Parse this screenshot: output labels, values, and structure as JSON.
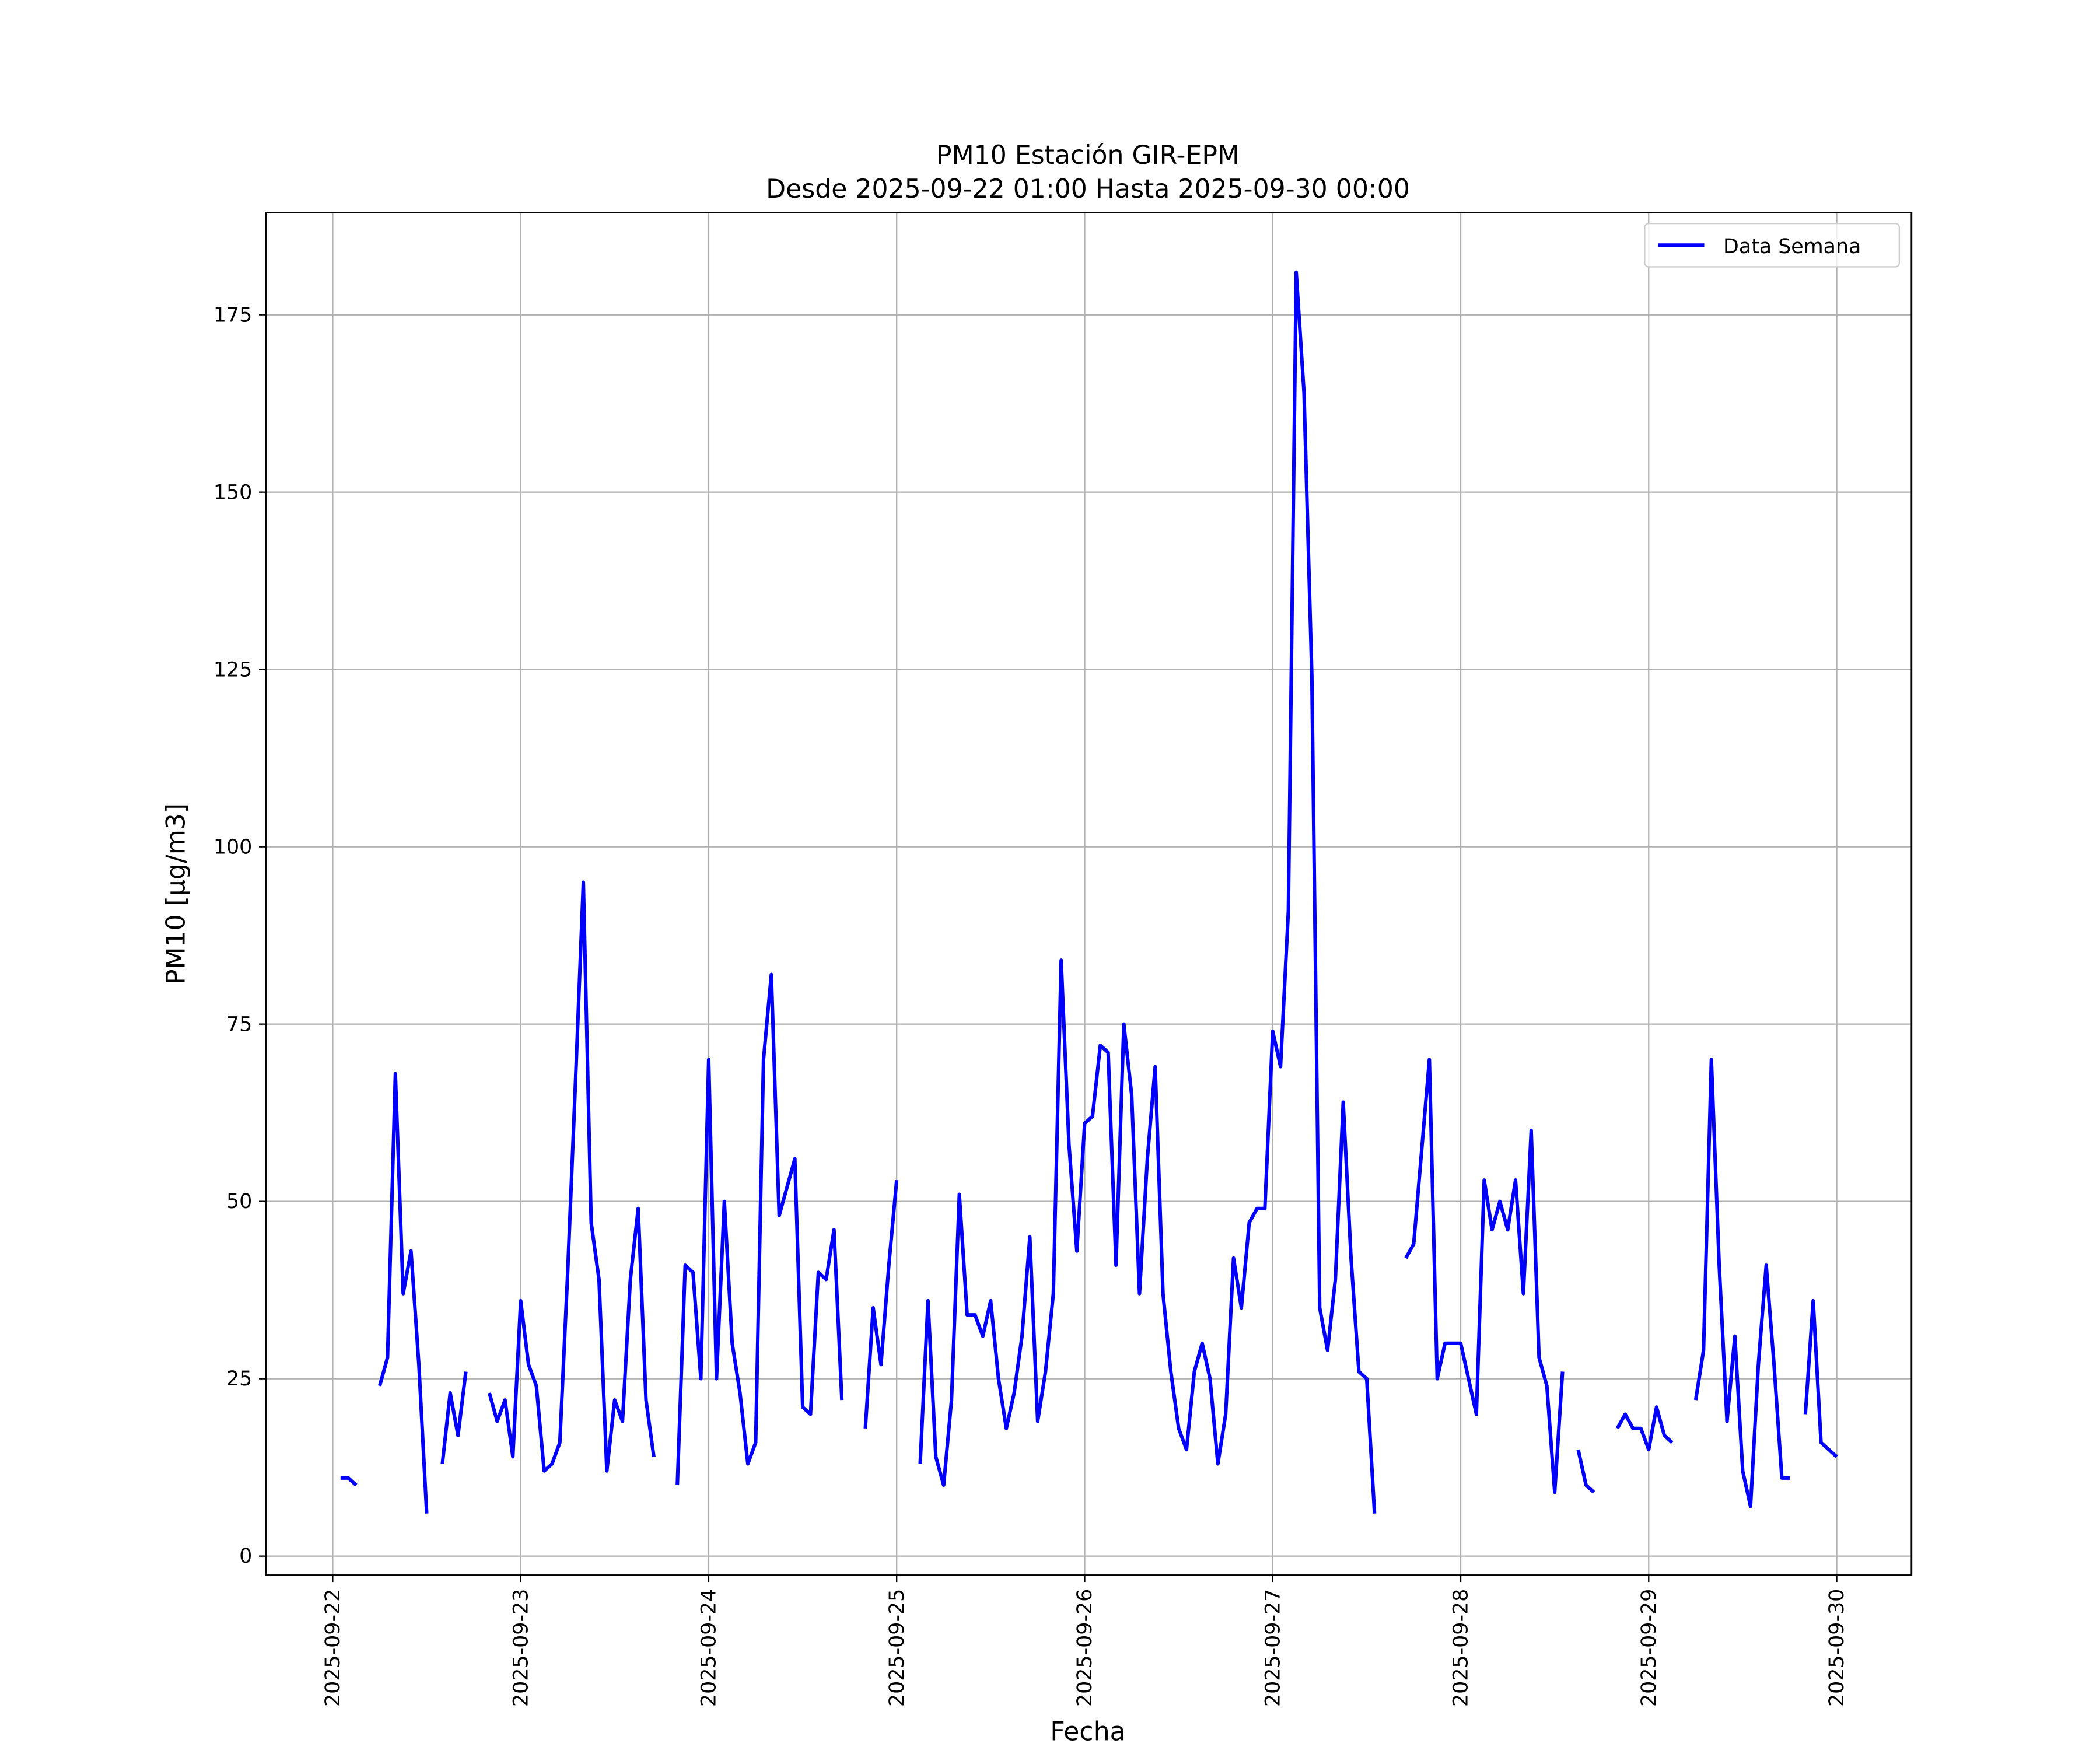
{
  "chart_data": {
    "type": "line",
    "title": "PM10 Estación GIR-EPM",
    "subtitle": "Desde 2025-09-22 01:00 Hasta 2025-09-30 00:00",
    "xlabel": "Fecha",
    "ylabel": "PM10 [μg/m3]",
    "ylim": [
      -2.7,
      189.4
    ],
    "yticks": [
      0,
      25,
      50,
      75,
      100,
      125,
      150,
      175
    ],
    "xticks": [
      "2025-09-22",
      "2025-09-23",
      "2025-09-24",
      "2025-09-25",
      "2025-09-26",
      "2025-09-27",
      "2025-09-28",
      "2025-09-29",
      "2025-09-30"
    ],
    "x_start": "2025-09-22 01:00",
    "x_step_hours": 1,
    "grid": true,
    "legend": {
      "position": "top-right",
      "entries": [
        "Data Semana"
      ]
    },
    "series": [
      {
        "name": "Data Semana",
        "color": "#0000ff",
        "values": [
          11,
          11,
          10,
          null,
          null,
          24,
          28,
          68,
          37,
          43,
          27,
          6,
          null,
          13,
          23,
          17,
          26,
          null,
          null,
          23,
          19,
          22,
          14,
          36,
          27,
          24,
          12,
          13,
          16,
          40,
          67,
          95,
          47,
          39,
          12,
          22,
          19,
          39,
          49,
          22,
          14,
          null,
          null,
          10,
          41,
          40,
          25,
          70,
          25,
          50,
          30,
          23,
          13,
          16,
          70,
          82,
          48,
          52,
          56,
          21,
          20,
          40,
          39,
          46,
          22,
          null,
          null,
          18,
          35,
          27,
          41,
          53,
          null,
          null,
          13,
          36,
          14,
          10,
          22,
          51,
          34,
          34,
          31,
          36,
          25,
          18,
          23,
          31,
          45,
          19,
          26,
          37,
          84,
          58,
          43,
          61,
          62,
          72,
          71,
          41,
          75,
          65,
          37,
          56,
          69,
          37,
          26,
          18,
          15,
          26,
          30,
          25,
          13,
          20,
          42,
          35,
          47,
          49,
          49,
          74,
          69,
          91,
          181,
          164,
          124,
          35,
          29,
          39,
          64,
          42,
          26,
          25,
          6,
          null,
          null,
          null,
          42,
          44,
          57,
          70,
          25,
          30,
          30,
          30,
          25,
          20,
          53,
          46,
          50,
          46,
          53,
          37,
          60,
          28,
          24,
          9,
          26,
          null,
          15,
          10,
          9,
          null,
          null,
          18,
          20,
          18,
          18,
          15,
          21,
          17,
          16,
          null,
          null,
          22,
          29,
          70,
          41,
          19,
          31,
          12,
          7,
          27,
          41,
          27,
          11,
          11,
          null,
          20,
          36,
          16,
          15,
          14
        ]
      }
    ]
  }
}
